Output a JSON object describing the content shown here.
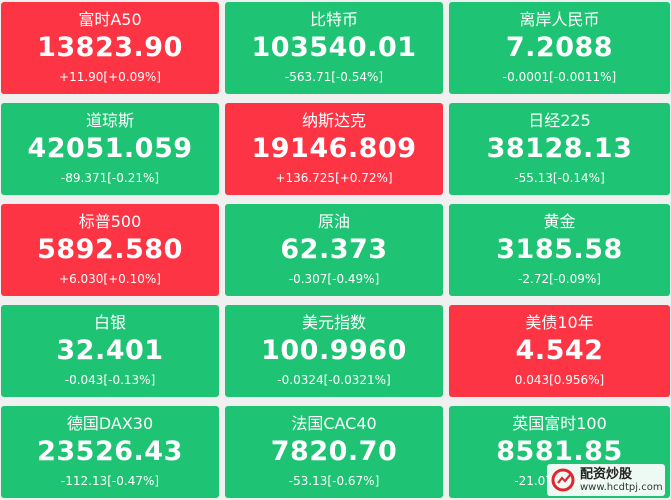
{
  "colors": {
    "up": "#fd3444",
    "down": "#1ec373",
    "text": "#ffffff"
  },
  "tiles": [
    {
      "name": "富时A50",
      "price": "13823.90",
      "change": "+11.90[+0.09%]",
      "trend": "up"
    },
    {
      "name": "比特币",
      "price": "103540.01",
      "change": "-563.71[-0.54%]",
      "trend": "down"
    },
    {
      "name": "离岸人民币",
      "price": "7.2088",
      "change": "-0.0001[-0.0011%]",
      "trend": "down"
    },
    {
      "name": "道琼斯",
      "price": "42051.059",
      "change": "-89.371[-0.21%]",
      "trend": "down"
    },
    {
      "name": "纳斯达克",
      "price": "19146.809",
      "change": "+136.725[+0.72%]",
      "trend": "up"
    },
    {
      "name": "日经225",
      "price": "38128.13",
      "change": "-55.13[-0.14%]",
      "trend": "down"
    },
    {
      "name": "标普500",
      "price": "5892.580",
      "change": "+6.030[+0.10%]",
      "trend": "up"
    },
    {
      "name": "原油",
      "price": "62.373",
      "change": "-0.307[-0.49%]",
      "trend": "down"
    },
    {
      "name": "黄金",
      "price": "3185.58",
      "change": "-2.72[-0.09%]",
      "trend": "down"
    },
    {
      "name": "白银",
      "price": "32.401",
      "change": "-0.043[-0.13%]",
      "trend": "down"
    },
    {
      "name": "美元指数",
      "price": "100.9960",
      "change": "-0.0324[-0.0321%]",
      "trend": "down"
    },
    {
      "name": "美债10年",
      "price": "4.542",
      "change": "0.043[0.956%]",
      "trend": "up"
    },
    {
      "name": "德国DAX30",
      "price": "23526.43",
      "change": "-112.13[-0.47%]",
      "trend": "down"
    },
    {
      "name": "法国CAC40",
      "price": "7820.70",
      "change": "-53.13[-0.67%]",
      "trend": "down"
    },
    {
      "name": "英国富时100",
      "price": "8581.85",
      "change": "-21.07[-0.24%]",
      "trend": "down"
    }
  ],
  "watermark": {
    "name": "配资炒股",
    "url": "www.hcdtpj.com",
    "logo_icon": "stock-logo-icon"
  }
}
